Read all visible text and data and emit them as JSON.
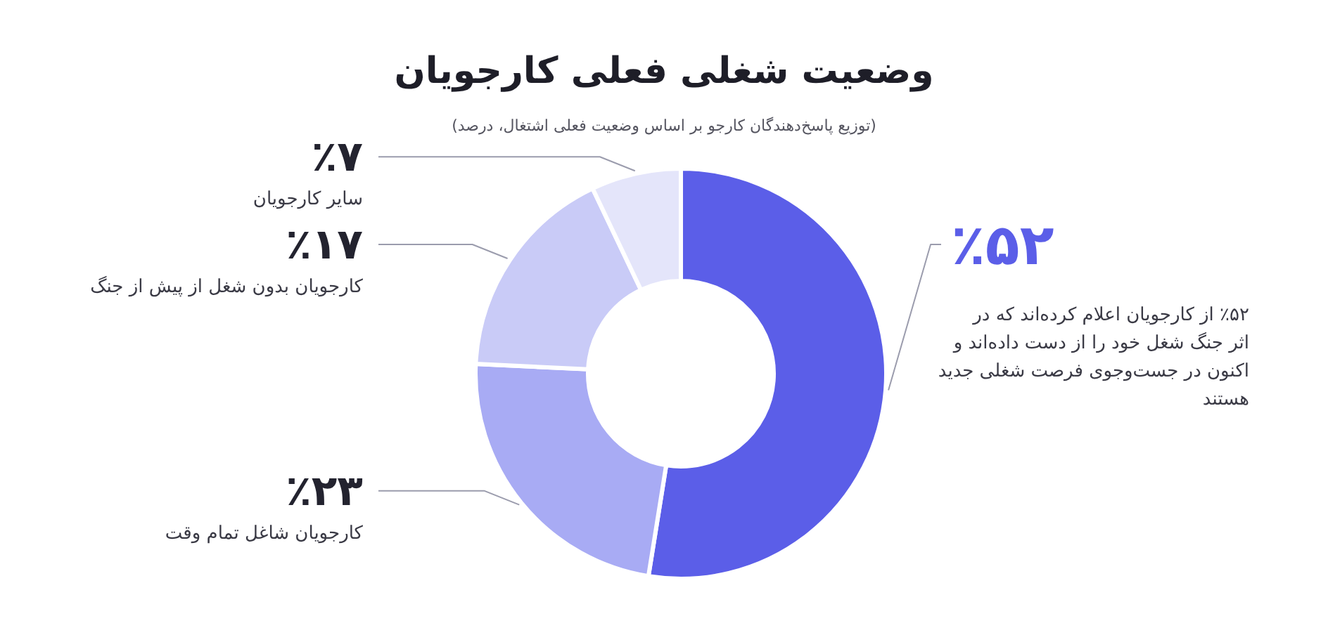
{
  "chart_data": {
    "type": "donut",
    "title": "وضعیت شغلی فعلی کارجویان",
    "subtitle": "(توزیع پاسخ‌دهندگان کارجو بر اساس وضعیت فعلی اشتغال، درصد)",
    "categories": [
      "٪۵۲ از کارجویان اعلام کرده‌اند که در اثر جنگ شغل خود را از دست داده‌اند و اکنون در جست‌وجوی فرصت شغلی جدید هستند",
      "کارجویان شاغل تمام وقت",
      "کارجویان بدون شغل از پیش از جنگ",
      "سایر کارجویان"
    ],
    "values": [
      52,
      23,
      17,
      7
    ],
    "colors": [
      "#5b5ee8",
      "#a8abf4",
      "#c9cbf7",
      "#e4e5fa"
    ],
    "value_labels": [
      "٪۵۲",
      "٪۲۳",
      "٪۱۷",
      "٪۷"
    ],
    "legend": false
  }
}
